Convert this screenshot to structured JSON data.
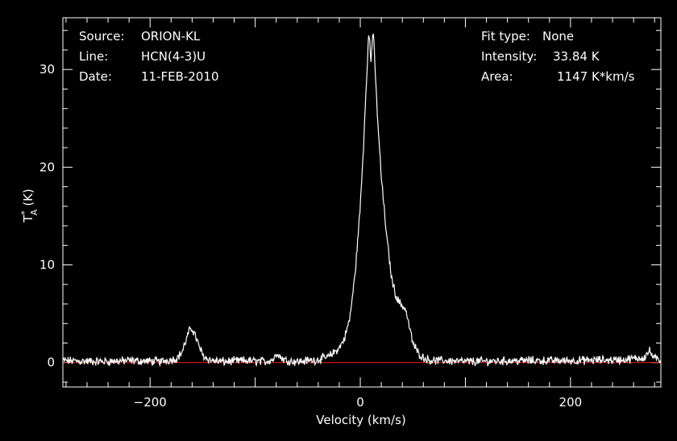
{
  "info": {
    "source_label": "Source:",
    "source_value": "ORION-KL",
    "line_label": "Line:",
    "line_value": "HCN(4-3)U",
    "date_label": "Date:",
    "date_value": "11-FEB-2010",
    "fit_label": "Fit type:",
    "fit_value": "None",
    "intensity_label": "Intensity:",
    "intensity_value": "33.84 K",
    "area_label": "Area:",
    "area_value": "1147 K*km/s"
  },
  "chart_data": {
    "type": "line",
    "xlabel": "Velocity (km/s)",
    "ylabel_main": "T",
    "ylabel_sup": "*",
    "ylabel_sub": "A",
    "ylabel_unit": "(K)",
    "xlim": [
      -283,
      286
    ],
    "ylim": [
      -2.5,
      35.3
    ],
    "x_ticks": [
      -200,
      0,
      200
    ],
    "y_ticks": [
      0,
      10,
      20,
      30
    ],
    "baseline": 0,
    "colors": {
      "spectrum": "#ffffff",
      "baseline": "#ff1a1a",
      "axes": "#ffffff"
    },
    "series": [
      {
        "x": [
          -283,
          -250,
          -220,
          -190,
          -175,
          -170,
          -166,
          -163,
          -160,
          -157,
          -154,
          -150,
          -146,
          -140,
          -130,
          -110,
          -90,
          -82,
          -79,
          -76,
          -70,
          -60,
          -50,
          -40,
          -30,
          -20,
          -15,
          -10,
          -5,
          0,
          3,
          5,
          7,
          8,
          9,
          10,
          11,
          12,
          13,
          15,
          17,
          20,
          25,
          30,
          35,
          40,
          43,
          46,
          50,
          55,
          60,
          65,
          70,
          80,
          100,
          150,
          200,
          250,
          270,
          275,
          280,
          286
        ],
        "y": [
          0.2,
          0.1,
          0.2,
          0.1,
          0.4,
          1.0,
          2.2,
          3.2,
          3.5,
          2.8,
          1.8,
          0.8,
          0.4,
          0.2,
          0.1,
          0.2,
          0.1,
          0.4,
          1.1,
          0.5,
          0.2,
          0.1,
          0.2,
          0.3,
          0.6,
          1.5,
          2.5,
          4.5,
          9.0,
          16.0,
          22.0,
          27.0,
          31.5,
          33.5,
          33.0,
          30.5,
          32.5,
          33.84,
          32.5,
          28.0,
          24.0,
          19.0,
          13.0,
          8.5,
          6.5,
          5.8,
          5.5,
          4.0,
          2.0,
          1.0,
          0.5,
          0.3,
          0.2,
          0.2,
          0.1,
          0.2,
          0.2,
          0.3,
          0.5,
          1.2,
          0.4,
          0.2
        ]
      }
    ]
  }
}
